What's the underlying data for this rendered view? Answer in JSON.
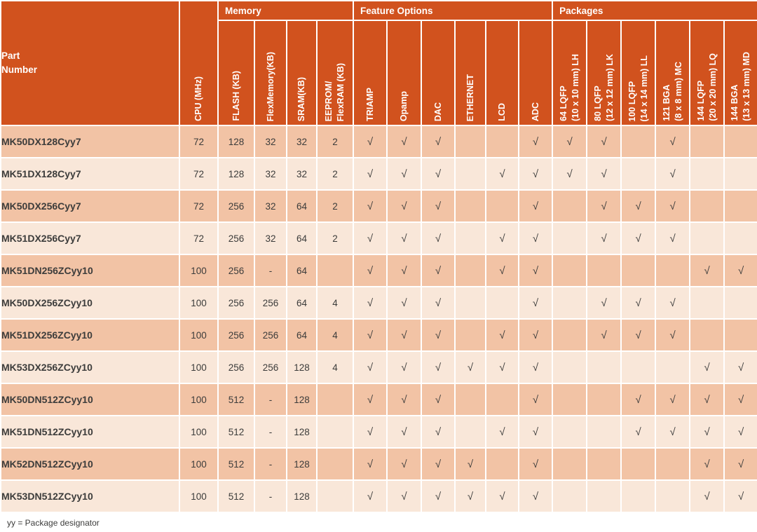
{
  "table": {
    "part_number_header": "Part\nNumber",
    "cpu_header": "CPU (MHz)",
    "groups": [
      {
        "label": "Memory",
        "columns": [
          "FLASH (KB)",
          "FlexMemory(KB)",
          "SRAM(KB)",
          "EEPROM/\nFlexRAM (KB)"
        ]
      },
      {
        "label": "Feature Options",
        "columns": [
          "TRIAMP",
          "Opamp",
          "DAC",
          "ETHERNET",
          "LCD",
          "ADC"
        ]
      },
      {
        "label": "Packages",
        "columns": [
          "64 LQFP\n(10 x 10 mm) LH",
          "80 LQFP\n(12 x 12 mm) LK",
          "100 LQFP\n(14 x 14 mm) LL",
          "121 BGA\n(8 x 8 mm) MC",
          "144 LQFP\n(20 x 20 mm) LQ",
          "144 BGA\n(13 x 13 mm) MD"
        ]
      }
    ],
    "check_glyph": "√",
    "rows": [
      {
        "part": "MK50DX128Cyy7",
        "cpu": "72",
        "flash": "128",
        "flexmem": "32",
        "sram": "32",
        "eeprom": "2",
        "features": [
          1,
          1,
          1,
          0,
          0,
          1
        ],
        "packages": [
          1,
          1,
          0,
          1,
          0,
          0
        ]
      },
      {
        "part": "MK51DX128Cyy7",
        "cpu": "72",
        "flash": "128",
        "flexmem": "32",
        "sram": "32",
        "eeprom": "2",
        "features": [
          1,
          1,
          1,
          0,
          1,
          1
        ],
        "packages": [
          1,
          1,
          0,
          1,
          0,
          0
        ]
      },
      {
        "part": "MK50DX256Cyy7",
        "cpu": "72",
        "flash": "256",
        "flexmem": "32",
        "sram": "64",
        "eeprom": "2",
        "features": [
          1,
          1,
          1,
          0,
          0,
          1
        ],
        "packages": [
          0,
          1,
          1,
          1,
          0,
          0
        ]
      },
      {
        "part": "MK51DX256Cyy7",
        "cpu": "72",
        "flash": "256",
        "flexmem": "32",
        "sram": "64",
        "eeprom": "2",
        "features": [
          1,
          1,
          1,
          0,
          1,
          1
        ],
        "packages": [
          0,
          1,
          1,
          1,
          0,
          0
        ]
      },
      {
        "part": "MK51DN256ZCyy10",
        "cpu": "100",
        "flash": "256",
        "flexmem": "-",
        "sram": "64",
        "eeprom": "",
        "features": [
          1,
          1,
          1,
          0,
          1,
          1
        ],
        "packages": [
          0,
          0,
          0,
          0,
          1,
          1
        ]
      },
      {
        "part": "MK50DX256ZCyy10",
        "cpu": "100",
        "flash": "256",
        "flexmem": "256",
        "sram": "64",
        "eeprom": "4",
        "features": [
          1,
          1,
          1,
          0,
          0,
          1
        ],
        "packages": [
          0,
          1,
          1,
          1,
          0,
          0
        ]
      },
      {
        "part": "MK51DX256ZCyy10",
        "cpu": "100",
        "flash": "256",
        "flexmem": "256",
        "sram": "64",
        "eeprom": "4",
        "features": [
          1,
          1,
          1,
          0,
          1,
          1
        ],
        "packages": [
          0,
          1,
          1,
          1,
          0,
          0
        ]
      },
      {
        "part": "MK53DX256ZCyy10",
        "cpu": "100",
        "flash": "256",
        "flexmem": "256",
        "sram": "128",
        "eeprom": "4",
        "features": [
          1,
          1,
          1,
          1,
          1,
          1
        ],
        "packages": [
          0,
          0,
          0,
          0,
          1,
          1
        ]
      },
      {
        "part": "MK50DN512ZCyy10",
        "cpu": "100",
        "flash": "512",
        "flexmem": "-",
        "sram": "128",
        "eeprom": "",
        "features": [
          1,
          1,
          1,
          0,
          0,
          1
        ],
        "packages": [
          0,
          0,
          1,
          1,
          1,
          1
        ]
      },
      {
        "part": "MK51DN512ZCyy10",
        "cpu": "100",
        "flash": "512",
        "flexmem": "-",
        "sram": "128",
        "eeprom": "",
        "features": [
          1,
          1,
          1,
          0,
          1,
          1
        ],
        "packages": [
          0,
          0,
          1,
          1,
          1,
          1
        ]
      },
      {
        "part": "MK52DN512ZCyy10",
        "cpu": "100",
        "flash": "512",
        "flexmem": "-",
        "sram": "128",
        "eeprom": "",
        "features": [
          1,
          1,
          1,
          1,
          0,
          1
        ],
        "packages": [
          0,
          0,
          0,
          0,
          1,
          1
        ]
      },
      {
        "part": "MK53DN512ZCyy10",
        "cpu": "100",
        "flash": "512",
        "flexmem": "-",
        "sram": "128",
        "eeprom": "",
        "features": [
          1,
          1,
          1,
          1,
          1,
          1
        ],
        "packages": [
          0,
          0,
          0,
          0,
          1,
          1
        ]
      }
    ],
    "footnote": "yy = Package designator"
  },
  "colors": {
    "header_bg": "#D1521E",
    "row_odd": "#F2C3A5",
    "row_even": "#F9E7D9",
    "border": "#FFFFFF",
    "header_text": "#FFFFFF",
    "body_text": "#3C3C3B"
  }
}
